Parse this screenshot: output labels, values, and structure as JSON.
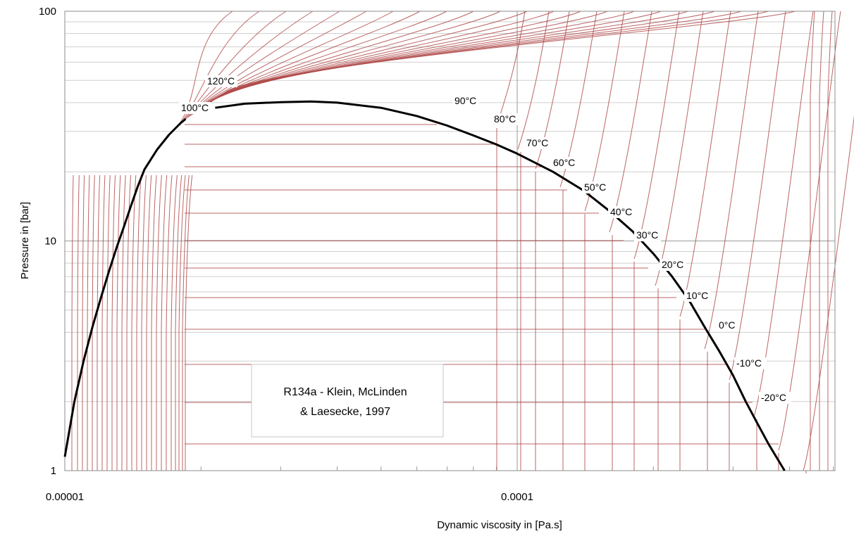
{
  "chart_data": {
    "type": "line",
    "title": "",
    "xlabel": "Dynamic viscosity in [Pa.s]",
    "ylabel": "Pressure in [bar]",
    "x_scale": "log",
    "y_scale": "log",
    "xlim": [
      1e-05,
      0.00056
    ],
    "ylim": [
      1,
      100
    ],
    "x_tick_labels": [
      "0.00001",
      "0.0001"
    ],
    "y_tick_labels": [
      "1",
      "10",
      "100"
    ],
    "grid": true,
    "annotation": [
      "R134a - Klein, McLinden",
      "& Laesecke, 1997"
    ],
    "colors": {
      "saturation_dome": "#000000",
      "isotherms": "#b04a4a",
      "grid": "#c8c8c8"
    },
    "isotherm_labels": [
      "120°C",
      "100°C",
      "90°C",
      "80°C",
      "70°C",
      "60°C",
      "50°C",
      "40°C",
      "30°C",
      "20°C",
      "10°C",
      "0°C",
      "-10°C",
      "-20°C"
    ],
    "series": [
      {
        "points": [
          [
            1e-05,
            1.15
          ],
          [
            1.05e-05,
            2.0
          ],
          [
            1.1e-05,
            3.0
          ],
          [
            1.15e-05,
            4.2
          ],
          [
            1.2e-05,
            5.6
          ],
          [
            1.25e-05,
            7.3
          ],
          [
            1.3e-05,
            9.3
          ],
          [
            1.35e-05,
            11.5
          ],
          [
            1.4e-05,
            14.2
          ],
          [
            1.45e-05,
            17.3
          ],
          [
            1.5e-05,
            20.5
          ],
          [
            1.6e-05,
            25.0
          ],
          [
            1.7e-05,
            29.0
          ],
          [
            1.8e-05,
            32.5
          ],
          [
            1.85e-05,
            34.0
          ]
        ]
      },
      {
        "points": [
          [
            2.15e-05,
            38.0
          ],
          [
            2.5e-05,
            39.6
          ],
          [
            3e-05,
            40.2
          ],
          [
            3.5e-05,
            40.5
          ],
          [
            4e-05,
            40.0
          ],
          [
            5e-05,
            38.0
          ],
          [
            6e-05,
            35.0
          ],
          [
            7e-05,
            31.8
          ],
          [
            8e-05,
            28.8
          ],
          [
            9e-05,
            26.3
          ],
          [
            0.0001,
            24.0
          ],
          [
            0.00012,
            20.0
          ],
          [
            0.00014,
            16.6
          ],
          [
            0.00016,
            13.5
          ],
          [
            0.00018,
            11.0
          ],
          [
            0.0002,
            8.8
          ],
          [
            0.00022,
            7.0
          ],
          [
            0.00024,
            5.5
          ],
          [
            0.00026,
            4.2
          ],
          [
            0.00028,
            3.3
          ],
          [
            0.0003,
            2.6
          ],
          [
            0.00032,
            2.0
          ],
          [
            0.00034,
            1.6
          ],
          [
            0.00036,
            1.3
          ],
          [
            0.00039,
            1.0
          ]
        ]
      }
    ]
  }
}
